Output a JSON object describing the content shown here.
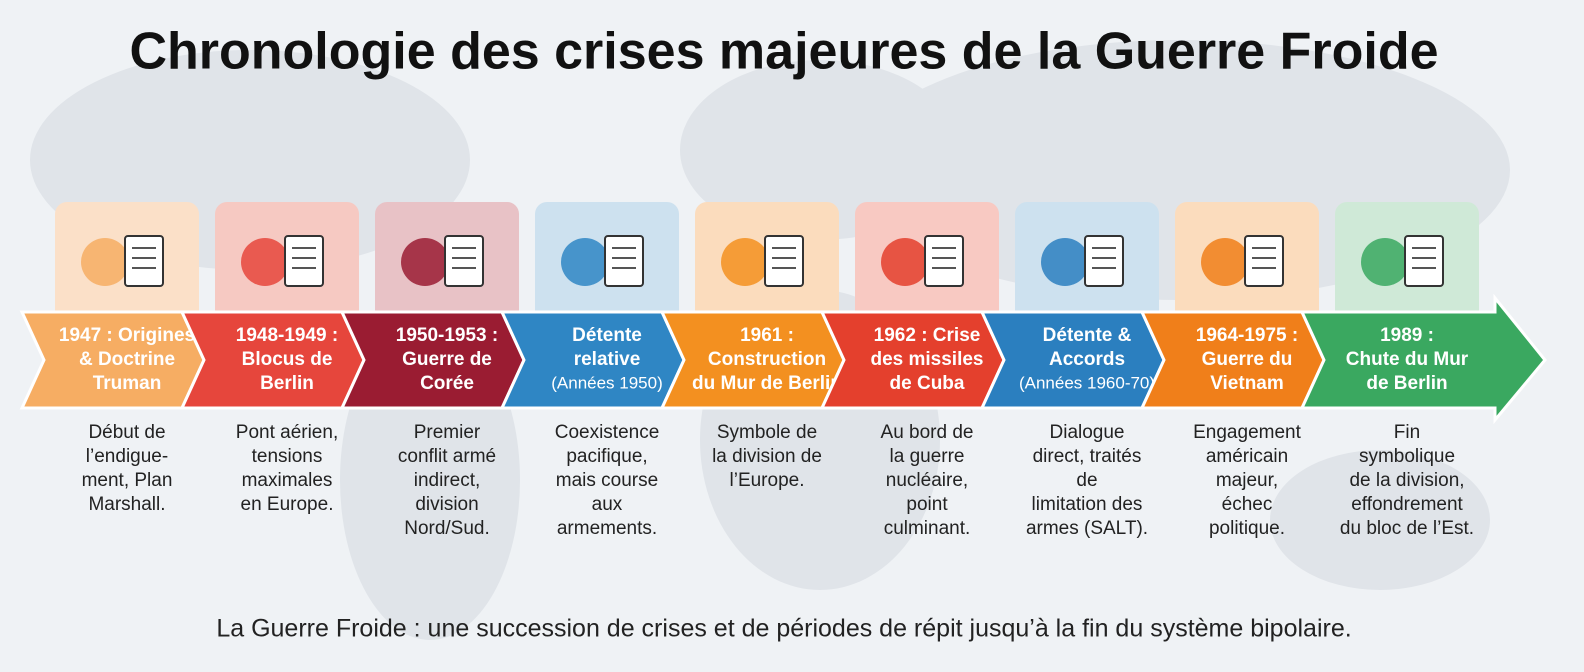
{
  "title": "Chronologie des crises majeures de la Guerre Froide",
  "items": [
    {
      "label": [
        "1947 : Origines",
        "& Doctrine",
        "Truman"
      ],
      "description": [
        "Début de",
        "l’endigue-",
        "ment, Plan",
        "Marshall."
      ]
    },
    {
      "label": [
        "1948-1949 :",
        "Blocus de",
        "Berlin"
      ],
      "description": [
        "Pont aérien,",
        "tensions",
        "maximales",
        "en Europe."
      ]
    },
    {
      "label": [
        "1950-1953 :",
        "Guerre de",
        "Corée"
      ],
      "description": [
        "Premier",
        "conflit armé",
        "indirect,",
        "division",
        "Nord/Sud."
      ]
    },
    {
      "label": [
        "Détente",
        "relative"
      ],
      "note": "(Années 1950)",
      "description": [
        "Coexistence",
        "pacifique,",
        "mais course",
        "aux",
        "armements."
      ]
    },
    {
      "label": [
        "1961 :",
        "Construction",
        "du Mur de Berlin"
      ],
      "description": [
        "Symbole de",
        "la division de",
        "l’Europe."
      ]
    },
    {
      "label": [
        "1962 : Crise",
        "des missiles",
        "de Cuba"
      ],
      "description": [
        "Au bord de",
        "la guerre",
        "nucléaire,",
        "point",
        "culminant."
      ]
    },
    {
      "label": [
        "Détente &",
        "Accords"
      ],
      "note": "(Années 1960-70)",
      "description": [
        "Dialogue",
        "direct, traités",
        "de",
        "limitation des",
        "armes (SALT)."
      ]
    },
    {
      "label": [
        "1964-1975 :",
        "Guerre du",
        "Vietnam"
      ],
      "description": [
        "Engagement",
        "américain",
        "majeur,",
        "échec",
        "politique."
      ]
    },
    {
      "label": [
        "1989 :",
        "Chute du Mur",
        "de Berlin"
      ],
      "description": [
        "Fin",
        "symbolique",
        "de la division,",
        "effondrement",
        "du bloc de l’Est."
      ]
    }
  ],
  "footer": "La Guerre Froide : une succession de crises et de périodes de répit jusqu’à la fin du système bipolaire."
}
